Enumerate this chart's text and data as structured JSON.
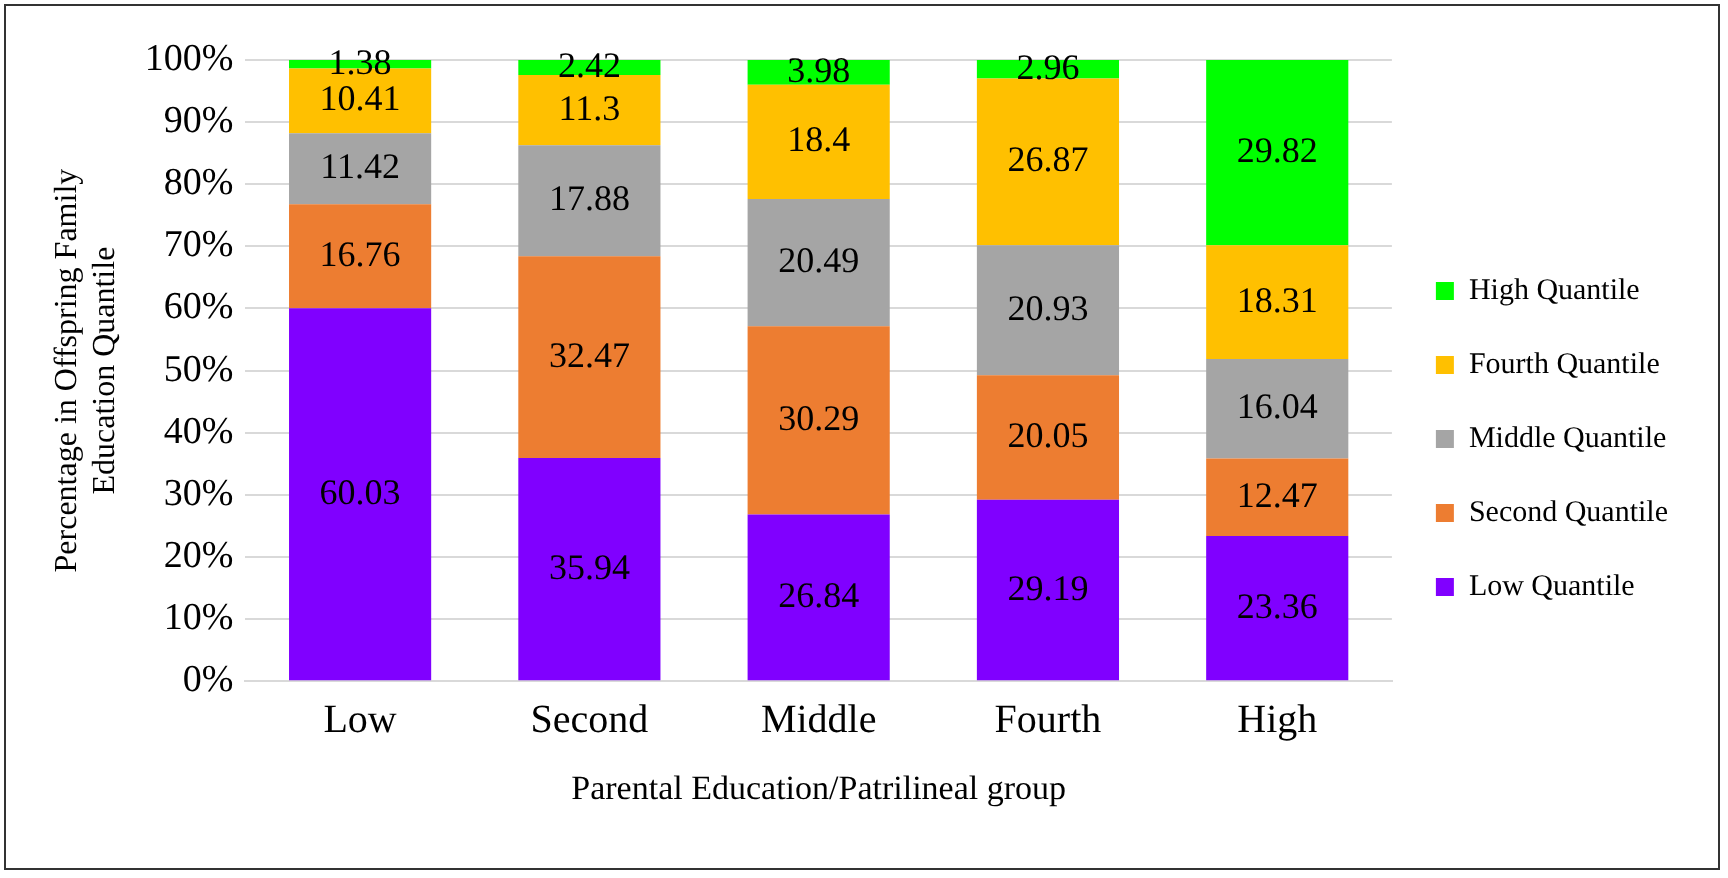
{
  "chart_data": {
    "type": "bar",
    "stacked": true,
    "xlabel": "Parental Education/Patrilineal group",
    "ylabel": "Percentage in Offspring Family Education Quantile",
    "categories": [
      "Low",
      "Second",
      "Middle",
      "Fourth",
      "High"
    ],
    "series": [
      {
        "name": "Low Quantile",
        "color": "#8000ff",
        "values": [
          60.03,
          35.94,
          26.84,
          29.19,
          23.36
        ]
      },
      {
        "name": "Second Quantile",
        "color": "#ed7d31",
        "values": [
          16.76,
          32.47,
          30.29,
          20.05,
          12.47
        ]
      },
      {
        "name": "Middle Quantile",
        "color": "#a5a5a5",
        "values": [
          11.42,
          17.88,
          20.49,
          20.93,
          16.04
        ]
      },
      {
        "name": "Fourth Quantile",
        "color": "#ffc000",
        "values": [
          10.41,
          11.3,
          18.4,
          26.87,
          18.31
        ]
      },
      {
        "name": "High Quantile",
        "color": "#00ff00",
        "values": [
          1.38,
          2.42,
          3.98,
          2.96,
          29.82
        ]
      }
    ],
    "ylim": [
      0,
      100
    ],
    "yticks": [
      {
        "value": 0,
        "label": "0%"
      },
      {
        "value": 10,
        "label": "10%"
      },
      {
        "value": 20,
        "label": "20%"
      },
      {
        "value": 30,
        "label": "30%"
      },
      {
        "value": 40,
        "label": "40%"
      },
      {
        "value": 50,
        "label": "50%"
      },
      {
        "value": 60,
        "label": "60%"
      },
      {
        "value": 70,
        "label": "70%"
      },
      {
        "value": 80,
        "label": "80%"
      },
      {
        "value": 90,
        "label": "90%"
      },
      {
        "value": 100,
        "label": "100%"
      }
    ],
    "grid": "y",
    "legend": "right",
    "data_labels": true
  }
}
